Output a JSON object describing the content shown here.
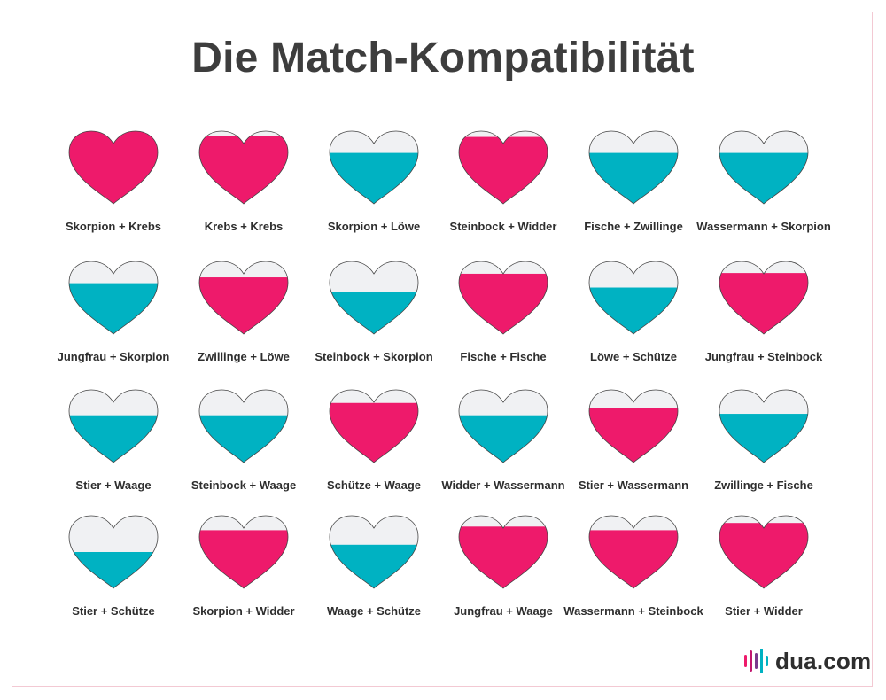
{
  "page": {
    "title": "Die Match-Kompatibilität"
  },
  "colors": {
    "high": "#ee1a6b",
    "low": "#00b2c2",
    "empty": "#f0f1f3",
    "outline": "#444444"
  },
  "chart_data": {
    "type": "heart-fill-grid",
    "title": "Die Match-Kompatibilität",
    "columns": 6,
    "items": [
      {
        "label": "Skorpion + Krebs",
        "fill": 1.0,
        "color": "#ee1a6b"
      },
      {
        "label": "Krebs + Krebs",
        "fill": 0.93,
        "color": "#ee1a6b"
      },
      {
        "label": "Skorpion + Löwe",
        "fill": 0.7,
        "color": "#00b2c2"
      },
      {
        "label": "Steinbock + Widder",
        "fill": 0.92,
        "color": "#ee1a6b"
      },
      {
        "label": "Fische + Zwillinge",
        "fill": 0.7,
        "color": "#00b2c2"
      },
      {
        "label": "Wassermann + Skorpion",
        "fill": 0.7,
        "color": "#00b2c2"
      },
      {
        "label": "Jungfrau + Skorpion",
        "fill": 0.7,
        "color": "#00b2c2"
      },
      {
        "label": "Zwillinge + Löwe",
        "fill": 0.78,
        "color": "#ee1a6b"
      },
      {
        "label": "Steinbock + Skorpion",
        "fill": 0.58,
        "color": "#00b2c2"
      },
      {
        "label": "Fische + Fische",
        "fill": 0.83,
        "color": "#ee1a6b"
      },
      {
        "label": "Löwe + Schütze",
        "fill": 0.64,
        "color": "#00b2c2"
      },
      {
        "label": "Jungfrau + Steinbock",
        "fill": 0.84,
        "color": "#ee1a6b"
      },
      {
        "label": "Stier + Waage",
        "fill": 0.65,
        "color": "#00b2c2"
      },
      {
        "label": "Steinbock + Waage",
        "fill": 0.65,
        "color": "#00b2c2"
      },
      {
        "label": "Schütze + Waage",
        "fill": 0.82,
        "color": "#ee1a6b"
      },
      {
        "label": "Widder + Wassermann",
        "fill": 0.65,
        "color": "#00b2c2"
      },
      {
        "label": "Stier + Wassermann",
        "fill": 0.75,
        "color": "#ee1a6b"
      },
      {
        "label": "Zwillinge + Fische",
        "fill": 0.67,
        "color": "#00b2c2"
      },
      {
        "label": "Stier + Schütze",
        "fill": 0.5,
        "color": "#00b2c2"
      },
      {
        "label": "Skorpion + Widder",
        "fill": 0.8,
        "color": "#ee1a6b"
      },
      {
        "label": "Waage + Schütze",
        "fill": 0.6,
        "color": "#00b2c2"
      },
      {
        "label": "Jungfrau + Waage",
        "fill": 0.85,
        "color": "#ee1a6b"
      },
      {
        "label": "Wassermann + Steinbock",
        "fill": 0.8,
        "color": "#ee1a6b"
      },
      {
        "label": "Stier + Widder",
        "fill": 0.9,
        "color": "#ee1a6b"
      }
    ]
  },
  "brand": {
    "logo_text": "dua.com",
    "bar_colors": [
      "#ee1a6b",
      "#c2176f",
      "#7a3a8c",
      "#00b2c2",
      "#00b2c2"
    ]
  }
}
